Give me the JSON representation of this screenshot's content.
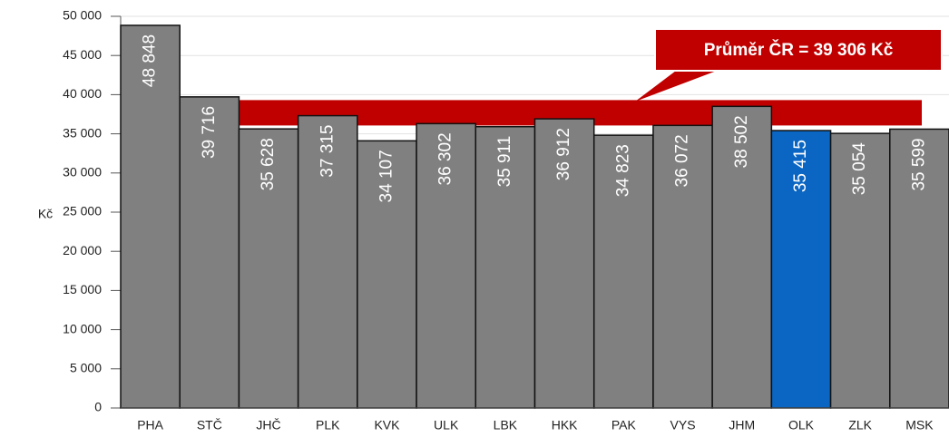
{
  "chart_data": {
    "type": "bar",
    "ylabel": "Kč",
    "categories": [
      "PHA",
      "STČ",
      "JHČ",
      "PLK",
      "KVK",
      "ULK",
      "LBK",
      "HKK",
      "PAK",
      "VYS",
      "JHM",
      "OLK",
      "ZLK",
      "MSK"
    ],
    "values": [
      48848,
      39716,
      35628,
      37315,
      34107,
      36302,
      35911,
      36912,
      34823,
      36072,
      38502,
      35415,
      35054,
      35599
    ],
    "value_labels": [
      "48 848",
      "39 716",
      "35 628",
      "37 315",
      "34 107",
      "36 302",
      "35 911",
      "36 912",
      "34 823",
      "36 072",
      "38 502",
      "35 415",
      "35 054",
      "35 599"
    ],
    "colors": [
      "#808080",
      "#808080",
      "#808080",
      "#808080",
      "#808080",
      "#808080",
      "#808080",
      "#808080",
      "#808080",
      "#808080",
      "#808080",
      "#0a66c2",
      "#808080",
      "#808080"
    ],
    "ylim": [
      0,
      50000
    ],
    "yticks": [
      {
        "value": 0,
        "label": "0"
      },
      {
        "value": 5000,
        "label": "5 000"
      },
      {
        "value": 10000,
        "label": "10 000"
      },
      {
        "value": 15000,
        "label": "15 000"
      },
      {
        "value": 20000,
        "label": "20 000"
      },
      {
        "value": 25000,
        "label": "25 000"
      },
      {
        "value": 30000,
        "label": "30 000"
      },
      {
        "value": 35000,
        "label": "35 000"
      },
      {
        "value": 40000,
        "label": "40 000"
      },
      {
        "value": 45000,
        "label": "45 000"
      },
      {
        "value": 50000,
        "label": "50 000"
      }
    ],
    "grid": true,
    "annotations": [
      {
        "text": "Průměr ČR = 39 306 Kč",
        "value": 39306,
        "color": "#c00000"
      }
    ]
  }
}
